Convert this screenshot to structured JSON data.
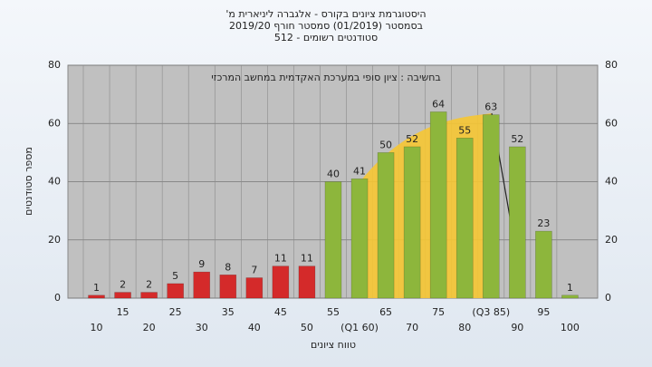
{
  "chart_data": {
    "type": "bar",
    "title": "היסטוגרמת ציונים בקורס - אלגברה ליניארית מ'",
    "subtitle": "בסמסטר (01/2019) סמסטר חורף 2019/20",
    "subtitle2": "סטודנטים רשומים - 512",
    "annotation": "בחשיבה : ציון סופי במערכת האקדמית במחשב המרכזי",
    "x_label": "טווח ציונים",
    "y_label": "מספר סטודנטים",
    "categories": [
      "10",
      "15",
      "20",
      "25",
      "30",
      "35",
      "40",
      "45",
      "50",
      "55",
      "(Q1 60)",
      "65",
      "70",
      "75",
      "80",
      "(Q3 85)",
      "90",
      "95",
      "100"
    ],
    "values": [
      1,
      2,
      2,
      5,
      9,
      8,
      7,
      11,
      11,
      40,
      41,
      50,
      52,
      64,
      55,
      63,
      52,
      23,
      1
    ],
    "colors": [
      "#d42a2a",
      "#d42a2a",
      "#d42a2a",
      "#d42a2a",
      "#d42a2a",
      "#d42a2a",
      "#d42a2a",
      "#d42a2a",
      "#d42a2a",
      "#8db63c",
      "#8db63c",
      "#8db63c",
      "#8db63c",
      "#8db63c",
      "#8db63c",
      "#8db63c",
      "#8db63c",
      "#8db63c",
      "#8db63c"
    ],
    "ylim": [
      0,
      80
    ],
    "yticks": [
      0,
      20,
      40,
      60,
      80
    ],
    "y2lim": [
      0,
      80
    ],
    "y2ticks": [
      0,
      20,
      40,
      60,
      80
    ],
    "grid": true
  }
}
